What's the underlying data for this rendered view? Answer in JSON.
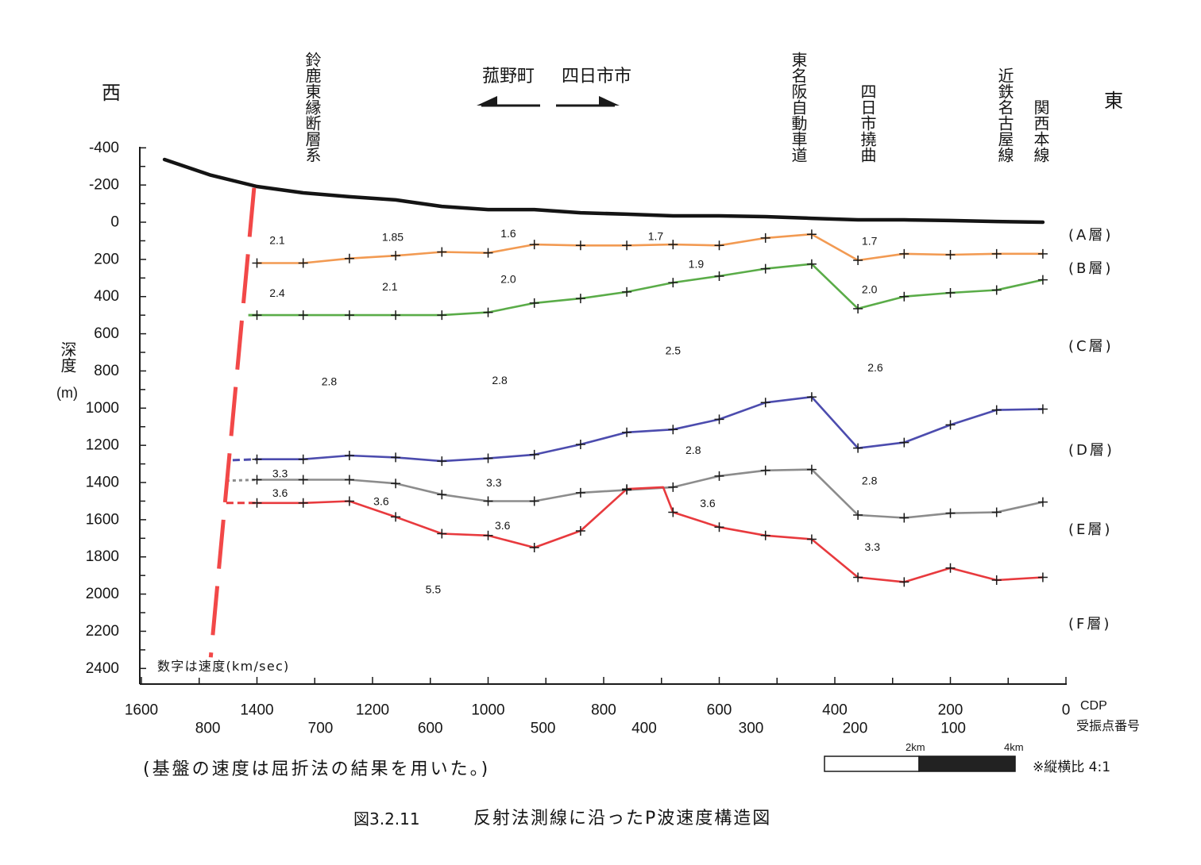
{
  "orientation": {
    "west": "西",
    "east": "東"
  },
  "top_labels": {
    "fault_system": "鈴鹿東縁断層系",
    "town_west": "菰野町",
    "town_east": "四日市市",
    "expressway": "東名阪自動車道",
    "flexure": "四日市撓曲",
    "kintetsu_line": "近鉄名古屋線",
    "kansai_line": "関西本線"
  },
  "layer_labels": [
    "(A層)",
    "(B層)",
    "(C層)",
    "(D層)",
    "(E層)",
    "(F層)"
  ],
  "notes": {
    "velocity_note": "数字は速度(km/sec)",
    "basement_note": "(基盤の速度は屈折法の結果を用いた。)"
  },
  "scale_bar": {
    "mid_label": "2km",
    "end_label": "4km",
    "aspect_ratio": "※縦横比 4:1"
  },
  "caption": {
    "number": "図3.2.11",
    "title": "反射法測線に沿ったP波速度構造図"
  },
  "chart_data": {
    "type": "line",
    "xlabel": "CDP",
    "x2label": "受振点番号",
    "ylabel": "深度",
    "yunit": "(m)",
    "xlim": [
      1600,
      0
    ],
    "ylim": [
      -400,
      2400
    ],
    "y_inverted": true,
    "grid": false,
    "xticks": [
      1600,
      1400,
      1200,
      1000,
      800,
      600,
      400,
      200,
      0
    ],
    "x2ticks": [
      {
        "label": "800",
        "cdp": 1485
      },
      {
        "label": "700",
        "cdp": 1290
      },
      {
        "label": "600",
        "cdp": 1100
      },
      {
        "label": "500",
        "cdp": 905
      },
      {
        "label": "400",
        "cdp": 730
      },
      {
        "label": "300",
        "cdp": 545
      },
      {
        "label": "200",
        "cdp": 365
      },
      {
        "label": "100",
        "cdp": 195
      }
    ],
    "yticks": [
      -400,
      -200,
      0,
      200,
      400,
      600,
      800,
      1000,
      1200,
      1400,
      1600,
      1800,
      2000,
      2200,
      2400
    ],
    "surface": {
      "color": "#141414",
      "points": [
        [
          1560,
          -337
        ],
        [
          1480,
          -253
        ],
        [
          1400,
          -192
        ],
        [
          1320,
          -158
        ],
        [
          1240,
          -137
        ],
        [
          1160,
          -120
        ],
        [
          1080,
          -85
        ],
        [
          1000,
          -68
        ],
        [
          920,
          -68
        ],
        [
          840,
          -51
        ],
        [
          760,
          -43
        ],
        [
          680,
          -34
        ],
        [
          600,
          -34
        ],
        [
          520,
          -30
        ],
        [
          440,
          -21
        ],
        [
          360,
          -13
        ],
        [
          280,
          -13
        ],
        [
          200,
          -9
        ],
        [
          120,
          -4
        ],
        [
          40,
          0
        ]
      ]
    },
    "series": [
      {
        "color": "#f29a52",
        "points": [
          [
            1400,
            220
          ],
          [
            1320,
            220
          ],
          [
            1240,
            195
          ],
          [
            1160,
            180
          ],
          [
            1080,
            160
          ],
          [
            1000,
            165
          ],
          [
            920,
            120
          ],
          [
            840,
            125
          ],
          [
            760,
            125
          ],
          [
            680,
            120
          ],
          [
            600,
            125
          ],
          [
            520,
            85
          ],
          [
            440,
            65
          ],
          [
            360,
            205
          ],
          [
            280,
            170
          ],
          [
            200,
            175
          ],
          [
            120,
            170
          ],
          [
            40,
            170
          ]
        ]
      },
      {
        "color": "#5aac48",
        "lead_in": {
          "style": "solid",
          "points": [
            [
              1415,
              500
            ],
            [
              1400,
              500
            ]
          ]
        },
        "points": [
          [
            1400,
            500
          ],
          [
            1320,
            500
          ],
          [
            1240,
            500
          ],
          [
            1160,
            500
          ],
          [
            1080,
            500
          ],
          [
            1000,
            485
          ],
          [
            920,
            435
          ],
          [
            840,
            410
          ],
          [
            760,
            375
          ],
          [
            680,
            325
          ],
          [
            600,
            290
          ],
          [
            520,
            250
          ],
          [
            440,
            225
          ],
          [
            360,
            465
          ],
          [
            280,
            400
          ],
          [
            200,
            380
          ],
          [
            120,
            365
          ],
          [
            40,
            310
          ]
        ]
      },
      {
        "color": "#4c4cae",
        "lead_in": {
          "style": "dashed",
          "points": [
            [
              1442,
              1280
            ],
            [
              1400,
              1275
            ]
          ]
        },
        "points": [
          [
            1400,
            1275
          ],
          [
            1320,
            1275
          ],
          [
            1240,
            1255
          ],
          [
            1160,
            1265
          ],
          [
            1080,
            1285
          ],
          [
            1000,
            1270
          ],
          [
            920,
            1250
          ],
          [
            840,
            1195
          ],
          [
            760,
            1130
          ],
          [
            680,
            1115
          ],
          [
            600,
            1060
          ],
          [
            520,
            970
          ],
          [
            440,
            940
          ],
          [
            360,
            1215
          ],
          [
            280,
            1185
          ],
          [
            200,
            1090
          ],
          [
            120,
            1010
          ],
          [
            40,
            1005
          ]
        ]
      },
      {
        "color": "#8c8c8c",
        "lead_in": {
          "style": "dotted",
          "points": [
            [
              1453,
              1390
            ],
            [
              1400,
              1385
            ]
          ]
        },
        "points": [
          [
            1400,
            1385
          ],
          [
            1320,
            1385
          ],
          [
            1240,
            1385
          ],
          [
            1160,
            1405
          ],
          [
            1080,
            1465
          ],
          [
            1000,
            1500
          ],
          [
            920,
            1500
          ],
          [
            840,
            1455
          ],
          [
            760,
            1440
          ],
          [
            680,
            1425
          ],
          [
            600,
            1365
          ],
          [
            520,
            1335
          ],
          [
            440,
            1330
          ],
          [
            360,
            1575
          ],
          [
            280,
            1590
          ],
          [
            200,
            1565
          ],
          [
            120,
            1560
          ],
          [
            40,
            1505
          ]
        ]
      },
      {
        "color": "#e83a3e",
        "lead_in": {
          "style": "dashed",
          "points": [
            [
              1453,
              1510
            ],
            [
              1400,
              1510
            ]
          ]
        },
        "unmarked": [
          9
        ],
        "points": [
          [
            1400,
            1510
          ],
          [
            1320,
            1510
          ],
          [
            1240,
            1500
          ],
          [
            1160,
            1585
          ],
          [
            1080,
            1675
          ],
          [
            1000,
            1685
          ],
          [
            920,
            1750
          ],
          [
            840,
            1660
          ],
          [
            760,
            1435
          ],
          [
            697,
            1425
          ],
          [
            680,
            1560
          ],
          [
            600,
            1640
          ],
          [
            520,
            1685
          ],
          [
            440,
            1705
          ],
          [
            360,
            1910
          ],
          [
            280,
            1935
          ],
          [
            200,
            1860
          ],
          [
            120,
            1925
          ],
          [
            40,
            1910
          ]
        ]
      }
    ],
    "fault": {
      "color": "#f24848",
      "style": "dashed",
      "points": [
        [
          1405,
          -185
        ],
        [
          1480,
          2340
        ]
      ]
    },
    "velocity_labels": [
      {
        "value": "2.1",
        "cdp": 1365,
        "depth": 95
      },
      {
        "value": "1.85",
        "cdp": 1165,
        "depth": 80
      },
      {
        "value": "1.6",
        "cdp": 965,
        "depth": 60
      },
      {
        "value": "1.7",
        "cdp": 710,
        "depth": 75
      },
      {
        "value": "1.7",
        "cdp": 340,
        "depth": 100
      },
      {
        "value": "1.9",
        "cdp": 640,
        "depth": 225
      },
      {
        "value": "2.4",
        "cdp": 1365,
        "depth": 380
      },
      {
        "value": "2.1",
        "cdp": 1170,
        "depth": 345
      },
      {
        "value": "2.0",
        "cdp": 965,
        "depth": 305
      },
      {
        "value": "2.0",
        "cdp": 340,
        "depth": 360
      },
      {
        "value": "2.5",
        "cdp": 680,
        "depth": 690
      },
      {
        "value": "2.8",
        "cdp": 1275,
        "depth": 855
      },
      {
        "value": "2.8",
        "cdp": 980,
        "depth": 850
      },
      {
        "value": "2.6",
        "cdp": 330,
        "depth": 780
      },
      {
        "value": "2.8",
        "cdp": 645,
        "depth": 1225
      },
      {
        "value": "3.3",
        "cdp": 1360,
        "depth": 1350
      },
      {
        "value": "3.3",
        "cdp": 990,
        "depth": 1400
      },
      {
        "value": "2.8",
        "cdp": 340,
        "depth": 1390
      },
      {
        "value": "3.6",
        "cdp": 1360,
        "depth": 1455
      },
      {
        "value": "3.6",
        "cdp": 1185,
        "depth": 1500
      },
      {
        "value": "3.6",
        "cdp": 975,
        "depth": 1630
      },
      {
        "value": "3.6",
        "cdp": 620,
        "depth": 1510
      },
      {
        "value": "3.3",
        "cdp": 335,
        "depth": 1745
      },
      {
        "value": "5.5",
        "cdp": 1095,
        "depth": 1975
      }
    ]
  }
}
